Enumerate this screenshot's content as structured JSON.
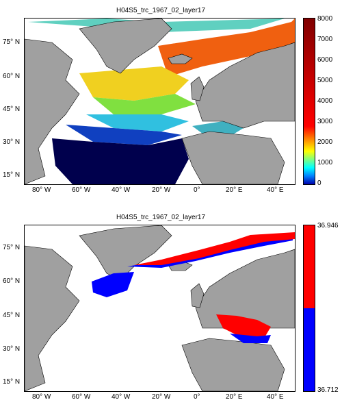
{
  "maps": [
    {
      "title": "H04S5_trc_1967_02_layer17",
      "lat_labels": [
        "75° N",
        "60° N",
        "45° N",
        "30° N",
        "15° N"
      ],
      "lon_labels": [
        "80° W",
        "60° W",
        "40° W",
        "20° W",
        "0°",
        "20° E",
        "40° E"
      ],
      "colorbar": {
        "type": "jet",
        "ticks": [
          "8000",
          "7000",
          "6000",
          "5000",
          "4000",
          "3000",
          "2000",
          "1000",
          "0"
        ]
      }
    },
    {
      "title": "H04S5_trc_1967_02_layer17",
      "lat_labels": [
        "75° N",
        "60° N",
        "45° N",
        "30° N",
        "15° N"
      ],
      "lon_labels": [
        "80° W",
        "60° W",
        "40° W",
        "20° W",
        "0°",
        "20° E",
        "40° E"
      ],
      "colorbar": {
        "type": "binary",
        "max_label": "36.946",
        "min_label": "36.712",
        "colors": [
          "#ff0000",
          "#0000ff"
        ]
      }
    }
  ],
  "colors": {
    "land": "#a0a0a0",
    "coast": "#000000",
    "ocean_deep": "#00004d",
    "jet_high": "#800000"
  }
}
